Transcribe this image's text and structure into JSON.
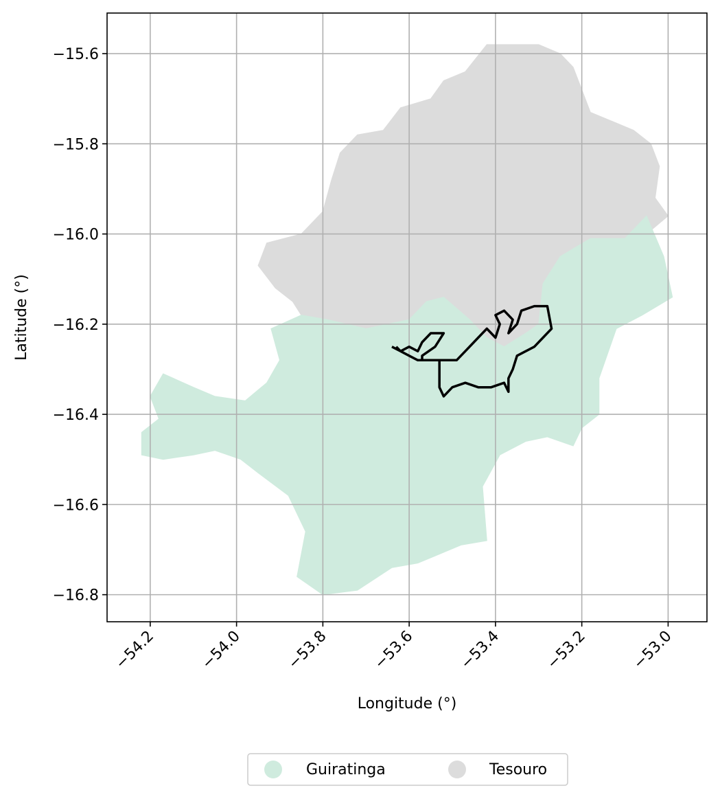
{
  "chart_data": {
    "type": "map",
    "xlabel": "Longitude (°)",
    "ylabel": "Latitude (°)",
    "xlim": [
      -54.3,
      -52.91
    ],
    "ylim": [
      -16.86,
      -15.51
    ],
    "x_ticks": [
      -54.2,
      -54.0,
      -53.8,
      -53.6,
      -53.4,
      -53.2,
      -53.0
    ],
    "y_ticks": [
      -15.6,
      -15.8,
      -16.0,
      -16.2,
      -16.4,
      -16.6,
      -16.8
    ],
    "x_tick_labels": [
      "−54.2",
      "−54.0",
      "−53.8",
      "−53.6",
      "−53.4",
      "−53.2",
      "−53.0"
    ],
    "y_tick_labels": [
      "−15.6",
      "−15.8",
      "−16.0",
      "−16.2",
      "−16.4",
      "−16.6",
      "−16.8"
    ],
    "grid": true,
    "legend_position": "bottom-center",
    "regions": [
      {
        "name": "Tesouro",
        "color": "#dcdcdc",
        "outline": [
          [
            -53.72,
            -15.78
          ],
          [
            -53.66,
            -15.77
          ],
          [
            -53.62,
            -15.72
          ],
          [
            -53.55,
            -15.7
          ],
          [
            -53.52,
            -15.66
          ],
          [
            -53.47,
            -15.64
          ],
          [
            -53.42,
            -15.58
          ],
          [
            -53.3,
            -15.58
          ],
          [
            -53.25,
            -15.6
          ],
          [
            -53.22,
            -15.63
          ],
          [
            -53.2,
            -15.68
          ],
          [
            -53.18,
            -15.73
          ],
          [
            -53.13,
            -15.75
          ],
          [
            -53.08,
            -15.77
          ],
          [
            -53.04,
            -15.8
          ],
          [
            -53.02,
            -15.85
          ],
          [
            -53.03,
            -15.92
          ],
          [
            -53.0,
            -15.96
          ],
          [
            -53.05,
            -16.0
          ],
          [
            -53.1,
            -16.01
          ],
          [
            -53.18,
            -16.01
          ],
          [
            -53.25,
            -16.05
          ],
          [
            -53.29,
            -16.11
          ],
          [
            -53.3,
            -16.2
          ],
          [
            -53.33,
            -16.22
          ],
          [
            -53.38,
            -16.25
          ],
          [
            -53.42,
            -16.23
          ],
          [
            -53.46,
            -16.19
          ],
          [
            -53.52,
            -16.14
          ],
          [
            -53.56,
            -16.15
          ],
          [
            -53.6,
            -16.19
          ],
          [
            -53.7,
            -16.21
          ],
          [
            -53.79,
            -16.19
          ],
          [
            -53.85,
            -16.18
          ],
          [
            -53.87,
            -16.15
          ],
          [
            -53.91,
            -16.12
          ],
          [
            -53.95,
            -16.07
          ],
          [
            -53.93,
            -16.02
          ],
          [
            -53.85,
            -16.0
          ],
          [
            -53.8,
            -15.95
          ],
          [
            -53.78,
            -15.88
          ],
          [
            -53.76,
            -15.82
          ]
        ]
      },
      {
        "name": "Guiratinga",
        "color": "#cfebde",
        "outline": [
          [
            -54.22,
            -16.49
          ],
          [
            -54.22,
            -16.44
          ],
          [
            -54.18,
            -16.41
          ],
          [
            -54.2,
            -16.36
          ],
          [
            -54.17,
            -16.31
          ],
          [
            -54.1,
            -16.34
          ],
          [
            -54.05,
            -16.36
          ],
          [
            -53.98,
            -16.37
          ],
          [
            -53.93,
            -16.33
          ],
          [
            -53.9,
            -16.28
          ],
          [
            -53.92,
            -16.21
          ],
          [
            -53.85,
            -16.18
          ],
          [
            -53.79,
            -16.19
          ],
          [
            -53.7,
            -16.21
          ],
          [
            -53.6,
            -16.19
          ],
          [
            -53.56,
            -16.15
          ],
          [
            -53.52,
            -16.14
          ],
          [
            -53.46,
            -16.19
          ],
          [
            -53.42,
            -16.23
          ],
          [
            -53.38,
            -16.25
          ],
          [
            -53.33,
            -16.22
          ],
          [
            -53.3,
            -16.2
          ],
          [
            -53.29,
            -16.11
          ],
          [
            -53.25,
            -16.05
          ],
          [
            -53.18,
            -16.01
          ],
          [
            -53.1,
            -16.01
          ],
          [
            -53.05,
            -15.96
          ],
          [
            -53.01,
            -16.05
          ],
          [
            -52.99,
            -16.14
          ],
          [
            -53.06,
            -16.18
          ],
          [
            -53.12,
            -16.21
          ],
          [
            -53.16,
            -16.32
          ],
          [
            -53.16,
            -16.4
          ],
          [
            -53.2,
            -16.43
          ],
          [
            -53.22,
            -16.47
          ],
          [
            -53.28,
            -16.45
          ],
          [
            -53.33,
            -16.46
          ],
          [
            -53.39,
            -16.49
          ],
          [
            -53.43,
            -16.56
          ],
          [
            -53.42,
            -16.68
          ],
          [
            -53.48,
            -16.69
          ],
          [
            -53.53,
            -16.71
          ],
          [
            -53.58,
            -16.73
          ],
          [
            -53.64,
            -16.74
          ],
          [
            -53.72,
            -16.79
          ],
          [
            -53.8,
            -16.8
          ],
          [
            -53.86,
            -16.76
          ],
          [
            -53.84,
            -16.66
          ],
          [
            -53.88,
            -16.58
          ],
          [
            -53.95,
            -16.53
          ],
          [
            -53.99,
            -16.5
          ],
          [
            -54.05,
            -16.48
          ],
          [
            -54.1,
            -16.49
          ],
          [
            -54.17,
            -16.5
          ]
        ]
      }
    ],
    "track": {
      "color": "#000000",
      "points": [
        [
          -53.64,
          -16.25
        ],
        [
          -53.62,
          -16.26
        ],
        [
          -53.6,
          -16.25
        ],
        [
          -53.58,
          -16.26
        ],
        [
          -53.57,
          -16.24
        ],
        [
          -53.55,
          -16.22
        ],
        [
          -53.52,
          -16.22
        ],
        [
          -53.54,
          -16.25
        ],
        [
          -53.57,
          -16.27
        ],
        [
          -53.57,
          -16.28
        ],
        [
          -53.55,
          -16.28
        ],
        [
          -53.52,
          -16.28
        ],
        [
          -53.49,
          -16.28
        ],
        [
          -53.47,
          -16.26
        ],
        [
          -53.44,
          -16.23
        ],
        [
          -53.42,
          -16.21
        ],
        [
          -53.4,
          -16.23
        ],
        [
          -53.39,
          -16.2
        ],
        [
          -53.4,
          -16.18
        ],
        [
          -53.38,
          -16.17
        ],
        [
          -53.36,
          -16.19
        ],
        [
          -53.37,
          -16.22
        ],
        [
          -53.35,
          -16.2
        ],
        [
          -53.34,
          -16.17
        ],
        [
          -53.31,
          -16.16
        ],
        [
          -53.28,
          -16.16
        ],
        [
          -53.27,
          -16.21
        ],
        [
          -53.29,
          -16.23
        ],
        [
          -53.31,
          -16.25
        ],
        [
          -53.35,
          -16.27
        ],
        [
          -53.36,
          -16.3
        ],
        [
          -53.37,
          -16.32
        ],
        [
          -53.37,
          -16.35
        ],
        [
          -53.38,
          -16.33
        ],
        [
          -53.41,
          -16.34
        ],
        [
          -53.44,
          -16.34
        ],
        [
          -53.47,
          -16.33
        ],
        [
          -53.5,
          -16.34
        ],
        [
          -53.52,
          -16.36
        ],
        [
          -53.53,
          -16.34
        ],
        [
          -53.53,
          -16.3
        ],
        [
          -53.53,
          -16.28
        ],
        [
          -53.56,
          -16.28
        ],
        [
          -53.58,
          -16.28
        ],
        [
          -53.6,
          -16.27
        ],
        [
          -53.62,
          -16.26
        ],
        [
          -53.63,
          -16.25
        ]
      ]
    },
    "legend": [
      {
        "label": "Guiratinga",
        "color": "#cfebde"
      },
      {
        "label": "Tesouro",
        "color": "#dcdcdc"
      }
    ]
  }
}
